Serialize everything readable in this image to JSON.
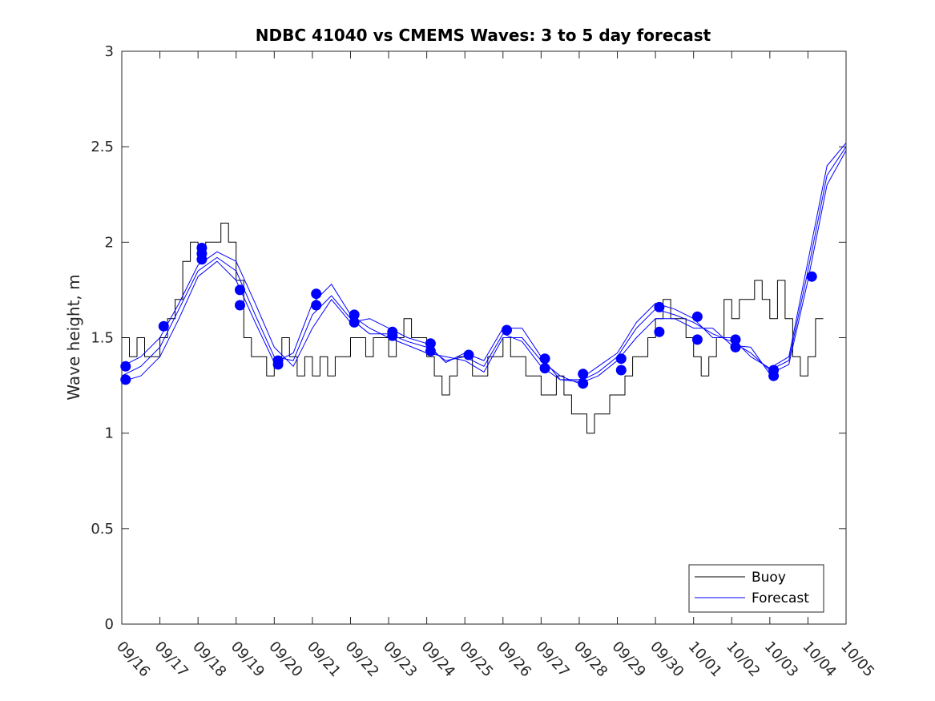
{
  "chart_data": {
    "type": "line",
    "title": "NDBC 41040 vs CMEMS Waves: 3 to 5 day forecast",
    "xlabel": "",
    "ylabel": "Wave height, m",
    "x_unit": "day",
    "xlim": [
      0,
      19
    ],
    "ylim": [
      0,
      3
    ],
    "yticks": [
      "0",
      "0.5",
      "1",
      "1.5",
      "2",
      "2.5",
      "3"
    ],
    "xticks": [
      "09/16",
      "09/17",
      "09/18",
      "09/19",
      "09/20",
      "09/21",
      "09/22",
      "09/23",
      "09/24",
      "09/25",
      "09/26",
      "09/27",
      "09/28",
      "09/29",
      "09/30",
      "10/01",
      "10/02",
      "10/03",
      "10/04",
      "10/05"
    ],
    "grid": false,
    "legend_position": "bottom-right",
    "colors": {
      "buoy": "#000000",
      "forecast": "#0000ff"
    },
    "series": [
      {
        "name": "Buoy",
        "x": [
          0,
          0.2,
          0.4,
          0.6,
          0.8,
          1.0,
          1.2,
          1.4,
          1.6,
          1.8,
          2.0,
          2.2,
          2.4,
          2.6,
          2.8,
          3.0,
          3.2,
          3.4,
          3.6,
          3.8,
          4.0,
          4.2,
          4.4,
          4.6,
          4.8,
          5.0,
          5.2,
          5.4,
          5.6,
          5.8,
          6.0,
          6.2,
          6.4,
          6.6,
          6.8,
          7.0,
          7.2,
          7.4,
          7.6,
          7.8,
          8.0,
          8.2,
          8.4,
          8.6,
          8.8,
          9.0,
          9.2,
          9.4,
          9.6,
          9.8,
          10.0,
          10.2,
          10.4,
          10.6,
          10.8,
          11.0,
          11.2,
          11.4,
          11.6,
          11.8,
          12.0,
          12.2,
          12.4,
          12.6,
          12.8,
          13.0,
          13.2,
          13.4,
          13.6,
          13.8,
          14.0,
          14.2,
          14.4,
          14.6,
          14.8,
          15.0,
          15.2,
          15.4,
          15.6,
          15.8,
          16.0,
          16.2,
          16.4,
          16.6,
          16.8,
          17.0,
          17.2,
          17.4,
          17.6,
          17.8,
          18.0,
          18.2,
          18.4
        ],
        "y": [
          1.5,
          1.4,
          1.5,
          1.4,
          1.4,
          1.5,
          1.6,
          1.7,
          1.9,
          2.0,
          1.9,
          2.0,
          2.0,
          2.1,
          2.0,
          1.8,
          1.5,
          1.4,
          1.4,
          1.3,
          1.4,
          1.5,
          1.4,
          1.3,
          1.4,
          1.3,
          1.4,
          1.3,
          1.4,
          1.4,
          1.5,
          1.5,
          1.4,
          1.5,
          1.5,
          1.4,
          1.5,
          1.6,
          1.5,
          1.5,
          1.4,
          1.3,
          1.2,
          1.3,
          1.4,
          1.4,
          1.3,
          1.3,
          1.4,
          1.4,
          1.5,
          1.4,
          1.4,
          1.3,
          1.3,
          1.2,
          1.2,
          1.3,
          1.2,
          1.1,
          1.1,
          1.0,
          1.1,
          1.1,
          1.2,
          1.2,
          1.3,
          1.4,
          1.4,
          1.5,
          1.6,
          1.7,
          1.6,
          1.6,
          1.5,
          1.4,
          1.3,
          1.4,
          1.5,
          1.7,
          1.6,
          1.7,
          1.7,
          1.8,
          1.7,
          1.6,
          1.8,
          1.6,
          1.4,
          1.3,
          1.4,
          1.6,
          1.6
        ]
      },
      {
        "name": "Forecast",
        "x": [
          0,
          0.5,
          1.0,
          1.5,
          2.0,
          2.5,
          3.0,
          3.5,
          4.0,
          4.5,
          5.0,
          5.5,
          6.0,
          6.5,
          7.0,
          7.5,
          8.0,
          8.5,
          9.0,
          9.5,
          10.0,
          10.5,
          11.0,
          11.5,
          12.0,
          12.5,
          13.0,
          13.5,
          14.0,
          14.5,
          15.0,
          15.5,
          16.0,
          16.5,
          17.0,
          17.5,
          18.0,
          18.5,
          19.0
        ],
        "y": [
          1.3,
          1.35,
          1.45,
          1.65,
          1.85,
          1.92,
          1.85,
          1.62,
          1.4,
          1.38,
          1.62,
          1.72,
          1.6,
          1.52,
          1.52,
          1.48,
          1.45,
          1.38,
          1.4,
          1.35,
          1.52,
          1.48,
          1.35,
          1.28,
          1.27,
          1.32,
          1.4,
          1.55,
          1.65,
          1.62,
          1.58,
          1.52,
          1.48,
          1.42,
          1.33,
          1.38,
          1.85,
          2.35,
          2.5
        ]
      },
      {
        "name": "",
        "x": [
          0,
          0.5,
          1.0,
          1.5,
          2.0,
          2.5,
          3.0,
          3.5,
          4.0,
          4.5,
          5.0,
          5.5,
          6.0,
          6.5,
          7.0,
          7.5,
          8.0,
          8.5,
          9.0,
          9.5,
          10.0,
          10.5,
          11.0,
          11.5,
          12.0,
          12.5,
          13.0,
          13.5,
          14.0,
          14.5,
          15.0,
          15.5,
          16.0,
          16.5,
          17.0,
          17.5,
          18.0,
          18.5,
          19.0
        ],
        "y": [
          1.27,
          1.3,
          1.4,
          1.6,
          1.82,
          1.9,
          1.8,
          1.58,
          1.37,
          1.42,
          1.68,
          1.78,
          1.62,
          1.55,
          1.5,
          1.46,
          1.42,
          1.4,
          1.38,
          1.32,
          1.5,
          1.5,
          1.38,
          1.3,
          1.26,
          1.3,
          1.38,
          1.5,
          1.6,
          1.6,
          1.55,
          1.55,
          1.46,
          1.45,
          1.31,
          1.36,
          1.8,
          2.3,
          2.48
        ]
      },
      {
        "name": "",
        "x": [
          0,
          0.5,
          1.0,
          1.5,
          2.0,
          2.5,
          3.0,
          3.5,
          4.0,
          4.5,
          5.0,
          5.5,
          6.0,
          6.5,
          7.0,
          7.5,
          8.0,
          8.5,
          9.0,
          9.5,
          10.0,
          10.5,
          11.0,
          11.5,
          12.0,
          12.5,
          13.0,
          13.5,
          14.0,
          14.5,
          15.0,
          15.5,
          16.0,
          16.5,
          17.0,
          17.5,
          18.0,
          18.5,
          19.0
        ],
        "y": [
          1.35,
          1.4,
          1.5,
          1.68,
          1.88,
          1.95,
          1.9,
          1.68,
          1.45,
          1.35,
          1.55,
          1.7,
          1.58,
          1.6,
          1.55,
          1.5,
          1.47,
          1.37,
          1.42,
          1.38,
          1.55,
          1.55,
          1.4,
          1.28,
          1.28,
          1.35,
          1.42,
          1.58,
          1.68,
          1.65,
          1.6,
          1.5,
          1.5,
          1.4,
          1.34,
          1.4,
          1.9,
          2.4,
          2.52
        ]
      }
    ],
    "markers": {
      "x": [
        0.1,
        0.1,
        1.1,
        2.1,
        2.1,
        2.1,
        3.1,
        3.1,
        4.1,
        4.1,
        5.1,
        5.1,
        6.1,
        6.1,
        7.1,
        7.1,
        8.1,
        8.1,
        9.1,
        10.1,
        11.1,
        11.1,
        12.1,
        12.1,
        13.1,
        13.1,
        14.1,
        14.1,
        15.1,
        15.1,
        16.1,
        16.1,
        17.1,
        17.1,
        18.1
      ],
      "y": [
        1.35,
        1.28,
        1.56,
        1.97,
        1.94,
        1.91,
        1.75,
        1.67,
        1.38,
        1.36,
        1.73,
        1.67,
        1.62,
        1.58,
        1.53,
        1.51,
        1.47,
        1.43,
        1.41,
        1.54,
        1.39,
        1.34,
        1.31,
        1.26,
        1.39,
        1.33,
        1.66,
        1.53,
        1.61,
        1.49,
        1.49,
        1.45,
        1.33,
        1.3,
        1.82
      ]
    }
  }
}
